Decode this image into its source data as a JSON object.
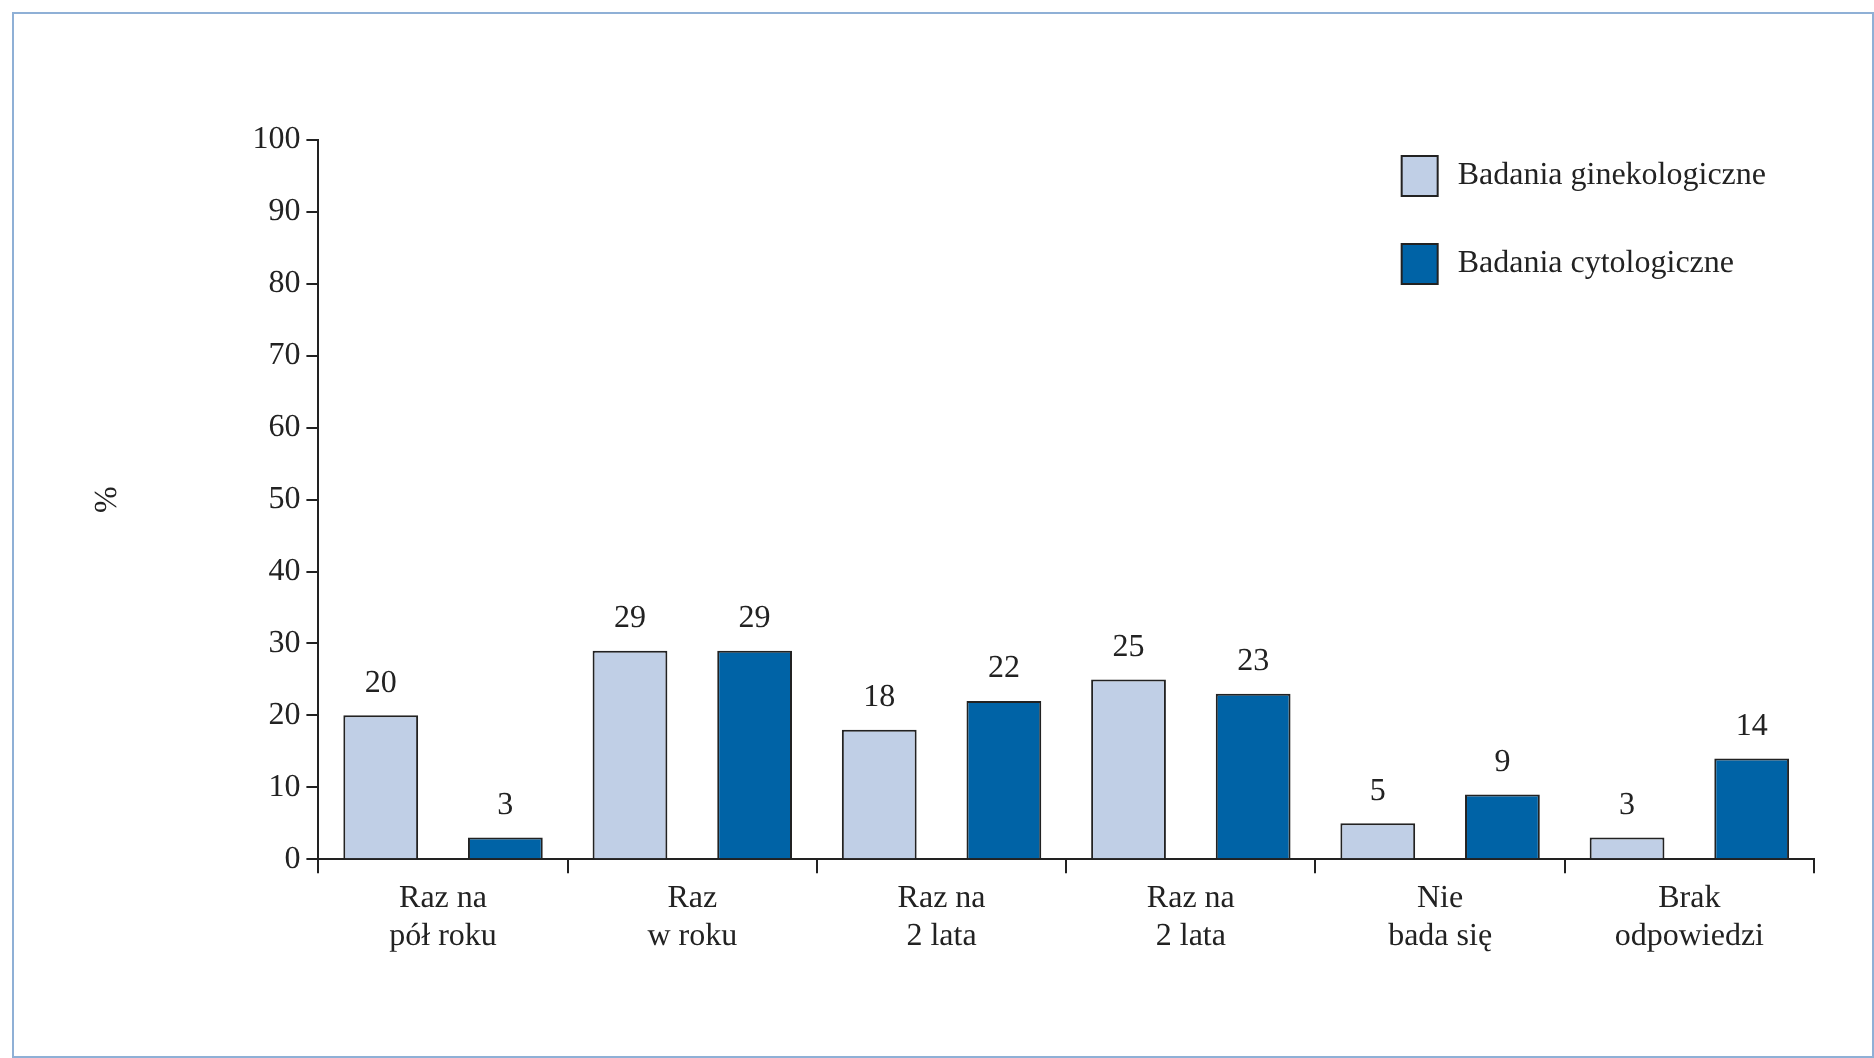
{
  "chart_data": {
    "type": "bar",
    "ylabel": "%",
    "categories": [
      "Raz na\npół roku",
      "Raz\nw roku",
      "Raz na\n2 lata",
      "Raz na\n2 lata",
      "Nie\nbada się",
      "Brak\nodpowiedzi"
    ],
    "series": [
      {
        "name": "Badania ginekologiczne",
        "color": "#c0cfe6",
        "values": [
          20,
          29,
          18,
          25,
          5,
          3
        ]
      },
      {
        "name": "Badania cytologiczne",
        "color": "#0063a6",
        "values": [
          3,
          29,
          22,
          23,
          9,
          14
        ]
      }
    ],
    "ylim": [
      0,
      100
    ],
    "yticks": [
      0,
      10,
      20,
      30,
      40,
      50,
      60,
      70,
      80,
      90,
      100
    ],
    "grid": false,
    "legend": "top right",
    "data_labels": true
  }
}
